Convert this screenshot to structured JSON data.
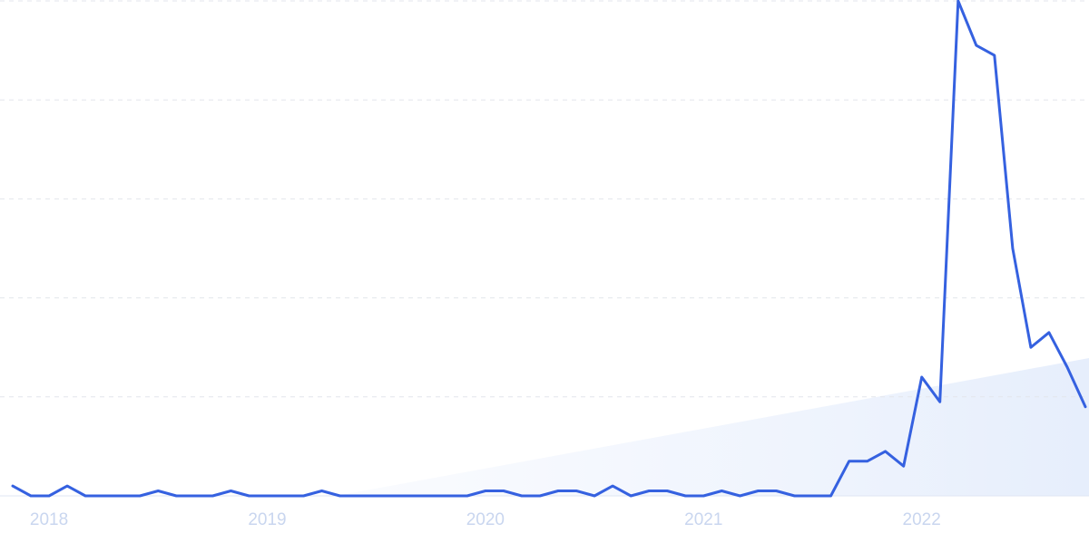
{
  "chart_data": {
    "type": "line",
    "x": [
      0,
      1,
      2,
      3,
      4,
      5,
      6,
      7,
      8,
      9,
      10,
      11,
      12,
      13,
      14,
      15,
      16,
      17,
      18,
      19,
      20,
      21,
      22,
      23,
      24,
      25,
      26,
      27,
      28,
      29,
      30,
      31,
      32,
      33,
      34,
      35,
      36,
      37,
      38,
      39,
      40,
      41,
      42,
      43,
      44,
      45,
      46,
      47,
      48,
      49,
      50,
      51,
      52,
      53,
      54,
      55,
      56,
      57,
      58,
      59
    ],
    "series": [
      {
        "color": "#3561e0",
        "values": [
          2,
          0,
          0,
          2,
          0,
          0,
          0,
          0,
          1,
          0,
          0,
          0,
          1,
          0,
          0,
          0,
          0,
          1,
          0,
          0,
          0,
          0,
          0,
          0,
          0,
          0,
          1,
          1,
          0,
          0,
          1,
          1,
          0,
          2,
          0,
          1,
          1,
          0,
          0,
          1,
          0,
          1,
          1,
          0,
          0,
          0,
          7,
          7,
          9,
          6,
          24,
          19,
          100,
          91,
          89,
          50,
          30,
          33,
          26,
          18
        ]
      }
    ],
    "xlim": [
      0,
      59
    ],
    "xticks": [
      {
        "value": 2,
        "label": "2018"
      },
      {
        "value": 14,
        "label": "2019"
      },
      {
        "value": 26,
        "label": "2020"
      },
      {
        "value": 38,
        "label": "2021"
      },
      {
        "value": 50,
        "label": "2022"
      }
    ],
    "ylim": [
      0,
      100
    ],
    "yticks": [
      0,
      20,
      40,
      60,
      80,
      100
    ],
    "grid": true
  }
}
